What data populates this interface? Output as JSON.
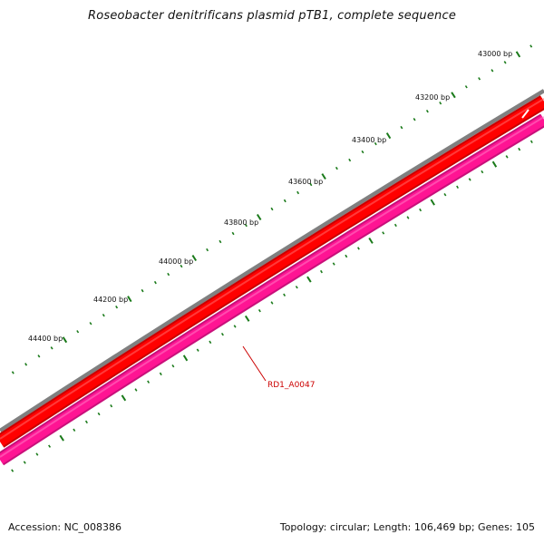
{
  "title": "Roseobacter denitrificans plasmid pTB1, complete sequence",
  "map": {
    "tick_labels": [
      "43000 bp",
      "43200 bp",
      "43400 bp",
      "43600 bp",
      "43800 bp",
      "44000 bp",
      "44200 bp",
      "44400 bp"
    ],
    "gene_label": "RD1_A0047",
    "colors": {
      "backbone": "#808080",
      "forward_genes": "#ff0000",
      "reverse_genes": "#ff1493",
      "ticks": "#1a7a1a",
      "gene_label": "#cc0000"
    }
  },
  "footer": {
    "accession": "Accession: NC_008386",
    "summary": "Topology: circular; Length: 106,469 bp; Genes: 105"
  }
}
